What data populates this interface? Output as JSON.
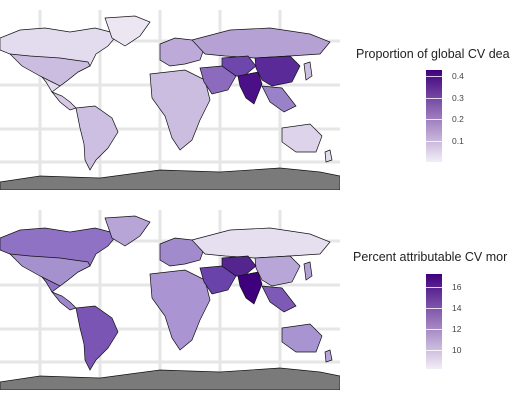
{
  "top_map": {
    "legend_title": "Proportion of global CV dea",
    "ticks": [
      {
        "label": "0.4",
        "value": 0.4
      },
      {
        "label": "0.3",
        "value": 0.3
      },
      {
        "label": "0.2",
        "value": 0.2
      },
      {
        "label": "0.1",
        "value": 0.1
      }
    ],
    "range": [
      0.0,
      0.43
    ]
  },
  "bottom_map": {
    "legend_title": "Percent attributable CV mor",
    "ticks": [
      {
        "label": "16",
        "value": 16
      },
      {
        "label": "14",
        "value": 14
      },
      {
        "label": "12",
        "value": 12
      },
      {
        "label": "10",
        "value": 10
      }
    ],
    "range": [
      8.2,
      17.2
    ]
  },
  "colors": {
    "scale_low": "#f2eef7",
    "scale_high": "#3f007d",
    "antarctica": "#7a7a7a",
    "grid": "#e6e6e6",
    "border": "#111111"
  }
}
